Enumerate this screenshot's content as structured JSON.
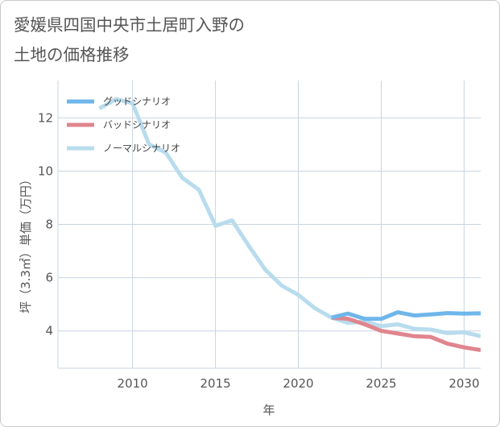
{
  "page": {
    "title_line1": "愛媛県四国中央市土居町入野の",
    "title_line2": "土地の価格推移"
  },
  "chart_data": {
    "type": "line",
    "title": "愛媛県四国中央市土居町入野の土地の価格推移",
    "xlabel": "年",
    "ylabel": "坪（3.3㎡）単価（万円）",
    "xlim": [
      2005.5,
      2031
    ],
    "ylim": [
      2.6,
      13.4
    ],
    "xticks": [
      2010,
      2015,
      2020,
      2025,
      2030
    ],
    "yticks": [
      4,
      6,
      8,
      10,
      12
    ],
    "grid": true,
    "legend_position": "top-left",
    "series": [
      {
        "name": "グッドシナリオ",
        "color": "#6fb6ea",
        "points": [
          [
            2022,
            4.5
          ],
          [
            2023,
            4.65
          ],
          [
            2024,
            4.45
          ],
          [
            2025,
            4.45
          ],
          [
            2026,
            4.7
          ],
          [
            2027,
            4.58
          ],
          [
            2028,
            4.62
          ],
          [
            2029,
            4.67
          ],
          [
            2030,
            4.65
          ],
          [
            2031,
            4.66
          ]
        ]
      },
      {
        "name": "バッドシナリオ",
        "color": "#e0858e",
        "points": [
          [
            2022,
            4.5
          ],
          [
            2023,
            4.45
          ],
          [
            2024,
            4.25
          ],
          [
            2025,
            4.0
          ],
          [
            2026,
            3.9
          ],
          [
            2027,
            3.8
          ],
          [
            2028,
            3.77
          ],
          [
            2029,
            3.52
          ],
          [
            2030,
            3.38
          ],
          [
            2031,
            3.28
          ]
        ]
      },
      {
        "name": "ノーマルシナリオ",
        "color": "#b8dced",
        "points": [
          [
            2008,
            12.35
          ],
          [
            2009,
            12.7
          ],
          [
            2010,
            12.55
          ],
          [
            2011,
            11.0
          ],
          [
            2012,
            10.7
          ],
          [
            2013,
            9.75
          ],
          [
            2014,
            9.3
          ],
          [
            2015,
            7.95
          ],
          [
            2016,
            8.15
          ],
          [
            2017,
            7.2
          ],
          [
            2018,
            6.3
          ],
          [
            2019,
            5.7
          ],
          [
            2020,
            5.35
          ],
          [
            2021,
            4.85
          ],
          [
            2022,
            4.5
          ],
          [
            2023,
            4.3
          ],
          [
            2024,
            4.35
          ],
          [
            2025,
            4.18
          ],
          [
            2026,
            4.25
          ],
          [
            2027,
            4.08
          ],
          [
            2028,
            4.05
          ],
          [
            2029,
            3.92
          ],
          [
            2030,
            3.95
          ],
          [
            2031,
            3.8
          ]
        ]
      }
    ]
  }
}
